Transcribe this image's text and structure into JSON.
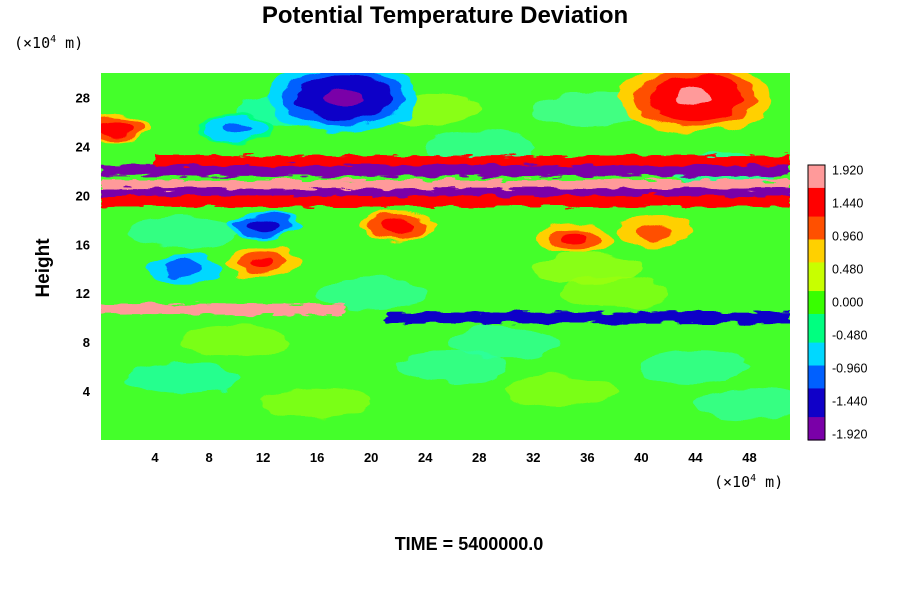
{
  "chart_data": {
    "type": "heatmap",
    "title": "Potential Temperature Deviation",
    "ylabel": "Height",
    "xlabel": "",
    "x_unit": {
      "prefix": "(×10",
      "exp": "4",
      "suffix": " m)"
    },
    "y_unit": {
      "prefix": "(×10",
      "exp": "4",
      "suffix": " m)"
    },
    "xlim": [
      0,
      51
    ],
    "ylim": [
      0,
      30
    ],
    "x_ticks": [
      4,
      8,
      12,
      16,
      20,
      24,
      28,
      32,
      36,
      40,
      44,
      48
    ],
    "y_ticks": [
      4,
      8,
      12,
      16,
      20,
      24,
      28
    ],
    "colorbar": {
      "min": -2.0,
      "max": 2.0,
      "ticks": [
        "1.920",
        "1.440",
        "0.960",
        "0.480",
        "0.000",
        "-0.480",
        "-0.960",
        "-1.440",
        "-1.920"
      ],
      "tick_values": [
        1.92,
        1.44,
        0.96,
        0.48,
        0.0,
        -0.48,
        -0.96,
        -1.44,
        -1.92
      ],
      "colors": [
        "#7a00a8",
        "#1000c8",
        "#0060ff",
        "#00d8ff",
        "#00ff80",
        "#38ff00",
        "#c8ff00",
        "#ffd000",
        "#ff5000",
        "#ff0000",
        "#ff9a9a"
      ]
    },
    "features": [
      {
        "name": "cold-core-aloft",
        "x": 18,
        "y": 28,
        "value": -1.8
      },
      {
        "name": "warm-core-east",
        "x": 44,
        "y": 28,
        "value": 1.8
      },
      {
        "name": "warm-west-edge",
        "x": 1,
        "y": 25.5,
        "value": 1.6
      },
      {
        "name": "cold-pocket",
        "x": 10,
        "y": 25.5,
        "value": -1.0
      },
      {
        "name": "warm-cell",
        "x": 22,
        "y": 17.5,
        "value": 1.5
      },
      {
        "name": "warm-cell",
        "x": 35,
        "y": 16.5,
        "value": 1.3
      },
      {
        "name": "warm-cell",
        "x": 41,
        "y": 17,
        "value": 1.2
      },
      {
        "name": "cold-band",
        "x": 12,
        "y": 17.5,
        "value": -1.6
      },
      {
        "name": "warm-spot",
        "x": 12,
        "y": 14.5,
        "value": 1.4
      },
      {
        "name": "cold-spot",
        "x": 6,
        "y": 14,
        "value": -1.2
      }
    ],
    "bands": [
      {
        "name": "upper-layer",
        "y": 22.8,
        "value": 1.6,
        "x_start": 4,
        "x_end": 51
      },
      {
        "name": "upper-layer",
        "y": 22.0,
        "value": -1.8,
        "x_start": 0,
        "x_end": 51
      },
      {
        "name": "core-layer",
        "y": 20.8,
        "value": 1.95,
        "x_start": 0,
        "x_end": 51
      },
      {
        "name": "core-layer",
        "y": 20.1,
        "value": -1.95,
        "x_start": 0,
        "x_end": 51
      },
      {
        "name": "core-layer",
        "y": 19.5,
        "value": 1.6,
        "x_start": 0,
        "x_end": 51
      },
      {
        "name": "tropopause-layer",
        "y": 10.7,
        "value": 1.7,
        "x_start": 0,
        "x_end": 18
      },
      {
        "name": "tropopause-layer",
        "y": 10.0,
        "value": -1.5,
        "x_start": 21,
        "x_end": 51
      }
    ]
  },
  "footer": {
    "time_label": "TIME = 5400000.0"
  }
}
